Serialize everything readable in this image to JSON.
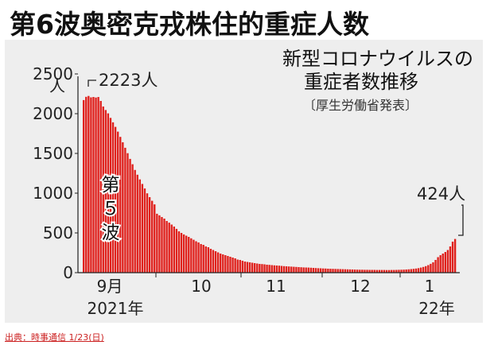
{
  "headline": "第6波奥密克戎株住的重症人数",
  "credit": "出典：時事通信 1/23(日)",
  "colors": {
    "bar": "#e0201c",
    "panel": "#eeeeee",
    "text": "#222222",
    "credit": "#cc2222"
  },
  "chart_data": {
    "type": "bar",
    "title_lines": [
      "新型コロナウイルスの",
      "重症者数推移"
    ],
    "source": "〔厚生労働省発表〕",
    "y_ticks": [
      "0",
      "500",
      "1000",
      "1500",
      "2000",
      "2500"
    ],
    "y_unit": "人",
    "ylim": [
      0,
      2500
    ],
    "x_month_labels": [
      "9月",
      "10",
      "11",
      "12",
      "1"
    ],
    "x_year_labels": [
      "2021年",
      "22年"
    ],
    "annotations": {
      "peak": "2223人",
      "latest": "424人",
      "wave": "第５波"
    },
    "values": [
      2171,
      2212,
      2223,
      2205,
      2210,
      2203,
      2210,
      2160,
      2090,
      2046,
      2004,
      1947,
      1891,
      1834,
      1774,
      1708,
      1640,
      1571,
      1503,
      1431,
      1364,
      1292,
      1232,
      1173,
      1116,
      1059,
      998,
      950,
      904,
      859,
      741,
      721,
      700,
      680,
      650,
      629,
      605,
      580,
      551,
      520,
      500,
      481,
      465,
      450,
      432,
      414,
      395,
      380,
      360,
      350,
      330,
      320,
      300,
      285,
      270,
      255,
      240,
      230,
      220,
      210,
      200,
      190,
      180,
      165,
      160,
      150,
      140,
      135,
      130,
      125,
      120,
      115,
      110,
      108,
      105,
      100,
      98,
      95,
      92,
      90,
      88,
      85,
      82,
      80,
      78,
      76,
      74,
      72,
      70,
      68,
      66,
      65,
      64,
      62,
      60,
      58,
      56,
      55,
      53,
      52,
      50,
      49,
      48,
      47,
      46,
      45,
      44,
      43,
      42,
      41,
      40,
      39,
      38,
      37,
      37,
      36,
      36,
      35,
      35,
      35,
      34,
      34,
      34,
      34,
      33,
      33,
      34,
      34,
      35,
      36,
      37,
      38,
      40,
      42,
      45,
      48,
      52,
      57,
      64,
      72,
      82,
      95,
      111,
      130,
      160,
      195,
      220,
      240,
      260,
      285,
      330,
      390,
      424
    ]
  }
}
